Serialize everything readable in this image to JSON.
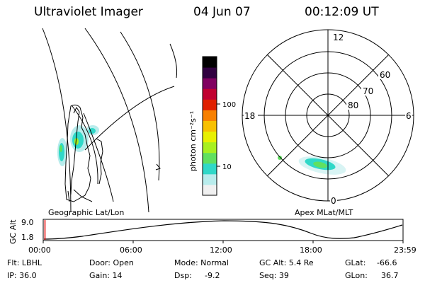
{
  "header": {
    "title": "Ultraviolet Imager",
    "date": "04 Jun 07",
    "time": "00:12:09 UT"
  },
  "colorbar": {
    "unit_label": "photon cm⁻²s⁻¹",
    "tick_100": "100",
    "tick_10": "10",
    "colors": [
      "#f0f0f0",
      "#b8ecec",
      "#30d8c8",
      "#60e060",
      "#a8f020",
      "#e8f000",
      "#f8c000",
      "#f88000",
      "#e02000",
      "#c00030",
      "#800060",
      "#300040",
      "#000000"
    ]
  },
  "geo_panel": {
    "label": "Geographic Lat/Lon"
  },
  "polar_panel": {
    "label": "Apex MLat/MLT",
    "mlt_12": "12",
    "mlt_18": "18",
    "mlt_6": "6",
    "mlt_0": "0",
    "lat_60": "60",
    "lat_70": "70",
    "lat_80": "80"
  },
  "altitude_strip": {
    "axis_label": "GC Alt",
    "y_max": "9.0",
    "y_min": "1.8",
    "x_ticks": [
      "00:00",
      "06:00",
      "12:00",
      "18:00",
      "23:59"
    ],
    "current_marker_color": "#e00000"
  },
  "footer": {
    "filter": "Flt: LBHL",
    "door": "Door: Open",
    "mode": "Mode: Normal",
    "gc_alt": "GC Alt: 5.4 Re",
    "glat_label": "GLat:",
    "glat_value": "-66.6",
    "ip": "IP: 36.0",
    "gain": "Gain: 14",
    "dsp_label": "Dsp:",
    "dsp_value": "-9.2",
    "seq": "Seq: 39",
    "glon_label": "GLon:",
    "glon_value": "36.7"
  }
}
